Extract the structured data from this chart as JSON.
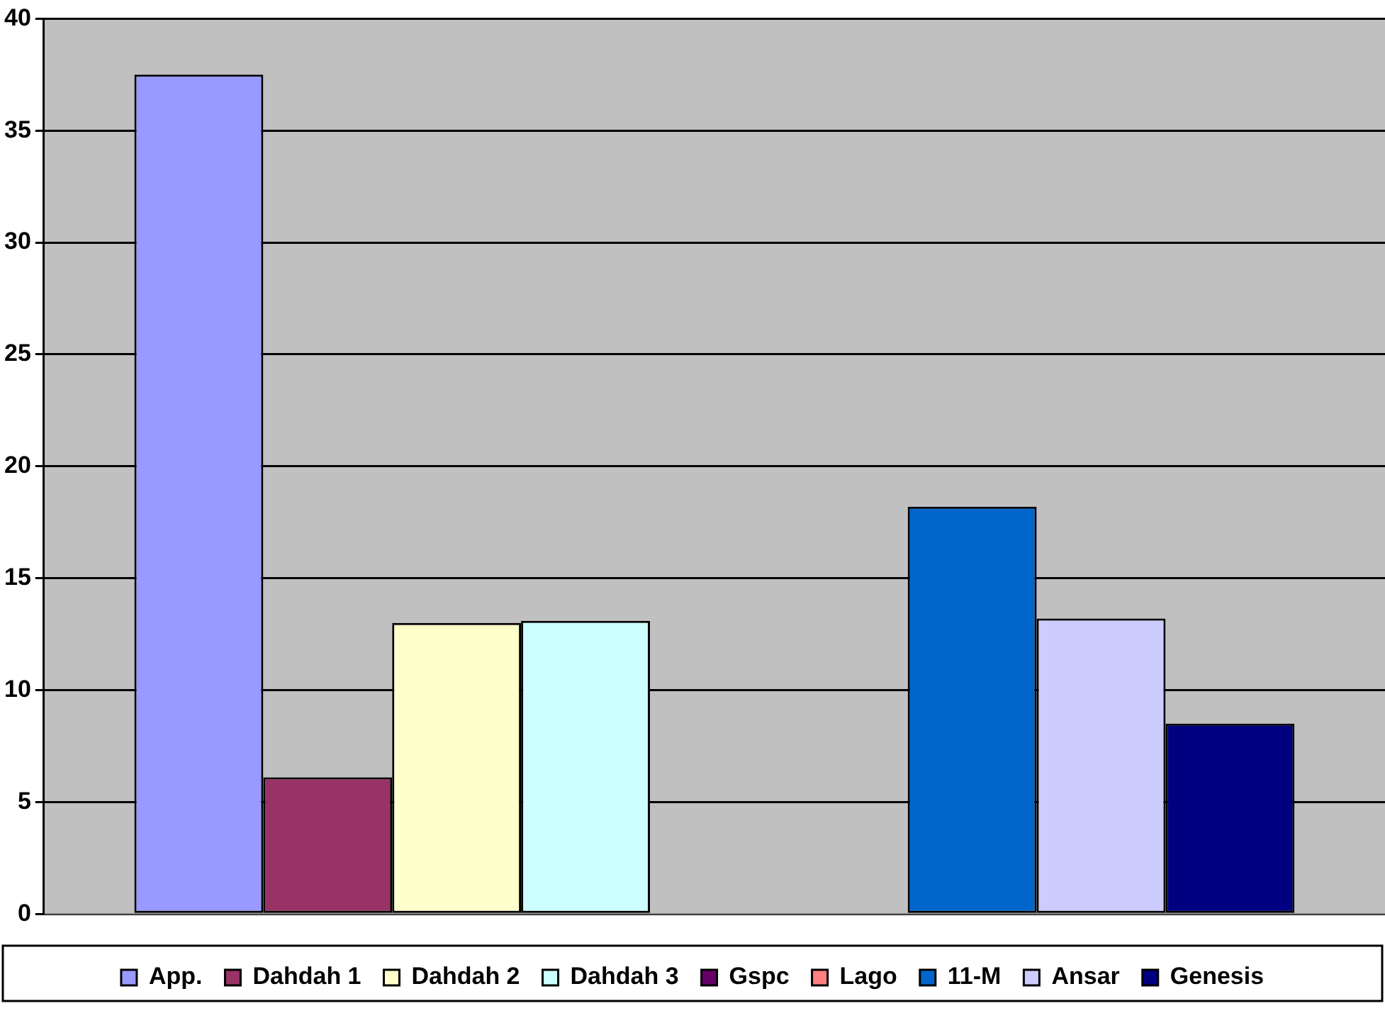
{
  "chart_data": {
    "type": "bar",
    "categories": [
      null
    ],
    "series": [
      {
        "name": "App.",
        "color": "#9999ff",
        "values": [
          37.5
        ]
      },
      {
        "name": "Dahdah 1",
        "color": "#993366",
        "values": [
          6.1
        ]
      },
      {
        "name": "Dahdah 2",
        "color": "#ffffcc",
        "values": [
          13.0
        ]
      },
      {
        "name": "Dahdah 3",
        "color": "#ccffff",
        "values": [
          13.1
        ]
      },
      {
        "name": "Gspc",
        "color": "#660066",
        "values": [
          0
        ]
      },
      {
        "name": "Lago",
        "color": "#ff8080",
        "values": [
          0
        ]
      },
      {
        "name": "11-M",
        "color": "#0066cc",
        "values": [
          18.2
        ]
      },
      {
        "name": "Ansar",
        "color": "#ccccff",
        "values": [
          13.2
        ]
      },
      {
        "name": "Genesis",
        "color": "#000080",
        "values": [
          8.5
        ]
      }
    ],
    "ylim": [
      0,
      40
    ],
    "yticks": [
      0,
      5,
      10,
      15,
      20,
      25,
      30,
      35,
      40
    ],
    "grid": "y",
    "legend": "bottom"
  }
}
